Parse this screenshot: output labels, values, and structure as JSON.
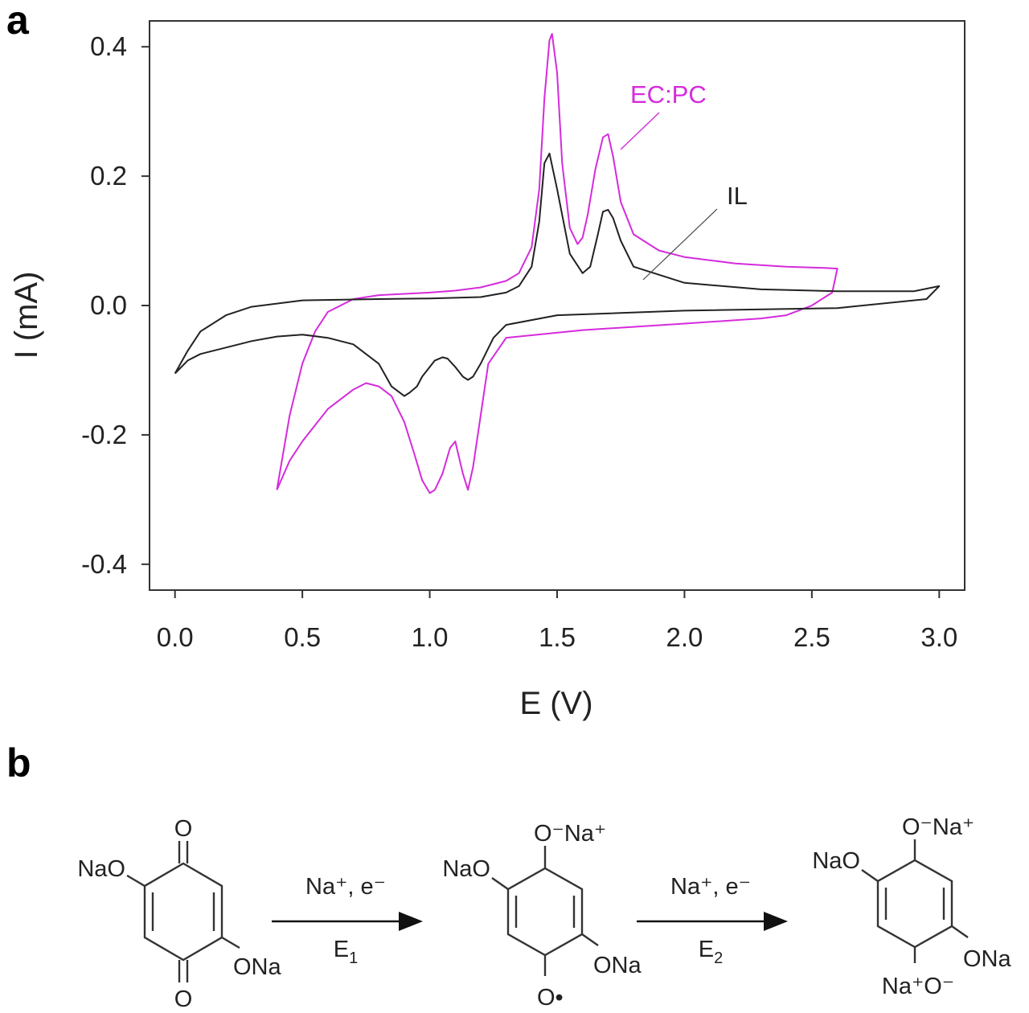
{
  "panel_a": {
    "letter": "a",
    "chart_data": {
      "type": "line",
      "title": "",
      "xlabel": "E (V)",
      "ylabel": "I (mA)",
      "xlim": [
        -0.1,
        3.1
      ],
      "ylim": [
        -0.44,
        0.44
      ],
      "xticks": [
        0.0,
        0.5,
        1.0,
        1.5,
        2.0,
        2.5,
        3.0
      ],
      "xtick_labels": [
        "0.0",
        "0.5",
        "1.0",
        "1.5",
        "2.0",
        "2.5",
        "3.0"
      ],
      "yticks": [
        0.4,
        0.2,
        0.0,
        -0.2,
        -0.4
      ],
      "ytick_labels": [
        "0.4",
        "0.2",
        "0.0",
        "-0.2",
        "-0.4"
      ],
      "grid": false,
      "series": [
        {
          "name": "EC:PC",
          "color": "#d52bdc",
          "x": [
            0.4,
            0.45,
            0.5,
            0.55,
            0.6,
            0.7,
            0.8,
            0.9,
            1.0,
            1.1,
            1.2,
            1.3,
            1.35,
            1.4,
            1.43,
            1.45,
            1.47,
            1.48,
            1.5,
            1.52,
            1.55,
            1.58,
            1.6,
            1.62,
            1.65,
            1.68,
            1.7,
            1.72,
            1.75,
            1.8,
            1.9,
            2.0,
            2.2,
            2.4,
            2.55,
            2.6,
            2.58,
            2.5,
            2.4,
            2.3,
            2.0,
            1.6,
            1.3,
            1.23,
            1.2,
            1.17,
            1.15,
            1.13,
            1.1,
            1.08,
            1.05,
            1.02,
            1.0,
            0.97,
            0.94,
            0.9,
            0.85,
            0.8,
            0.75,
            0.7,
            0.6,
            0.5,
            0.45,
            0.4
          ],
          "y": [
            -0.285,
            -0.17,
            -0.09,
            -0.04,
            -0.01,
            0.01,
            0.016,
            0.018,
            0.02,
            0.023,
            0.028,
            0.038,
            0.05,
            0.09,
            0.18,
            0.32,
            0.41,
            0.42,
            0.36,
            0.22,
            0.12,
            0.095,
            0.105,
            0.14,
            0.21,
            0.26,
            0.265,
            0.23,
            0.16,
            0.11,
            0.085,
            0.075,
            0.065,
            0.06,
            0.058,
            0.057,
            0.02,
            0.0,
            -0.015,
            -0.02,
            -0.028,
            -0.038,
            -0.05,
            -0.09,
            -0.17,
            -0.25,
            -0.285,
            -0.26,
            -0.21,
            -0.22,
            -0.26,
            -0.285,
            -0.29,
            -0.27,
            -0.23,
            -0.18,
            -0.14,
            -0.125,
            -0.12,
            -0.13,
            -0.16,
            -0.21,
            -0.24,
            -0.285
          ]
        },
        {
          "name": "IL",
          "color": "#222222",
          "x": [
            0.0,
            0.05,
            0.1,
            0.2,
            0.3,
            0.5,
            0.8,
            1.0,
            1.2,
            1.3,
            1.35,
            1.4,
            1.43,
            1.45,
            1.47,
            1.5,
            1.55,
            1.6,
            1.63,
            1.66,
            1.68,
            1.7,
            1.72,
            1.75,
            1.8,
            2.0,
            2.3,
            2.6,
            2.9,
            3.0,
            2.95,
            2.6,
            2.0,
            1.5,
            1.3,
            1.25,
            1.2,
            1.17,
            1.15,
            1.13,
            1.1,
            1.07,
            1.05,
            1.02,
            1.0,
            0.97,
            0.95,
            0.92,
            0.9,
            0.85,
            0.8,
            0.7,
            0.6,
            0.5,
            0.4,
            0.3,
            0.2,
            0.1,
            0.05,
            0.0
          ],
          "y": [
            -0.105,
            -0.07,
            -0.04,
            -0.015,
            -0.002,
            0.008,
            0.01,
            0.011,
            0.013,
            0.02,
            0.03,
            0.06,
            0.13,
            0.22,
            0.235,
            0.18,
            0.08,
            0.05,
            0.06,
            0.11,
            0.145,
            0.148,
            0.135,
            0.1,
            0.06,
            0.035,
            0.025,
            0.022,
            0.022,
            0.03,
            0.01,
            -0.004,
            -0.008,
            -0.015,
            -0.03,
            -0.05,
            -0.09,
            -0.11,
            -0.115,
            -0.11,
            -0.095,
            -0.082,
            -0.08,
            -0.085,
            -0.095,
            -0.11,
            -0.125,
            -0.135,
            -0.14,
            -0.125,
            -0.09,
            -0.06,
            -0.05,
            -0.045,
            -0.048,
            -0.055,
            -0.065,
            -0.075,
            -0.085,
            -0.105
          ]
        }
      ],
      "annotations": [
        {
          "text": "EC:PC",
          "color": "#d52bdc"
        },
        {
          "text": "IL",
          "color": "#222222"
        }
      ]
    }
  },
  "panel_b": {
    "letter": "b",
    "scheme": {
      "mol1": {
        "left_sub": "NaO",
        "top": "O",
        "right_sub": "ONa",
        "bottom": "O"
      },
      "arrow1": {
        "above": "Na⁺, e⁻",
        "below_main": "E",
        "below_sub": "1"
      },
      "mol2": {
        "left_sub": "NaO",
        "top": "O⁻Na⁺",
        "right_sub": "ONa",
        "bottom": "O•"
      },
      "arrow2": {
        "above": "Na⁺, e⁻",
        "below_main": "E",
        "below_sub": "2"
      },
      "mol3": {
        "left_sub": "NaO",
        "top": "O⁻Na⁺",
        "right_sub": "ONa",
        "bottom": "Na⁺O⁻"
      }
    }
  }
}
